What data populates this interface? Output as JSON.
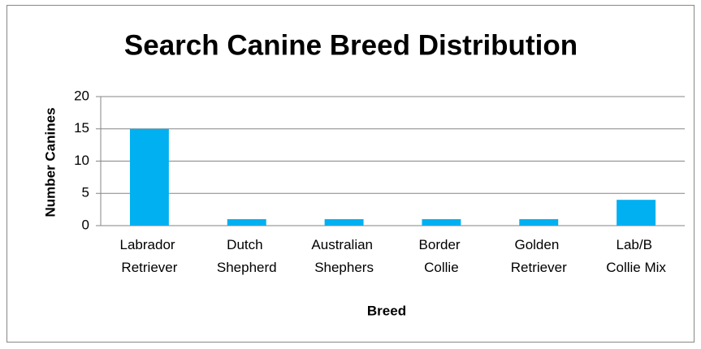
{
  "chart_data": {
    "type": "bar",
    "title": "Search Canine Breed Distribution",
    "x_label": "Breed",
    "y_label": "Number Canines",
    "categories": [
      "Labrador Retriever",
      "Dutch Shepherd",
      "Australian Shephers",
      "Border Collie",
      "Golden Retriever",
      "Lab/B Collie Mix"
    ],
    "values": [
      15,
      1,
      1,
      1,
      1,
      4
    ],
    "color": "#00b0f0",
    "ylim": [
      0,
      20
    ],
    "yticks": [
      0,
      5,
      10,
      15,
      20
    ],
    "grid": true
  }
}
